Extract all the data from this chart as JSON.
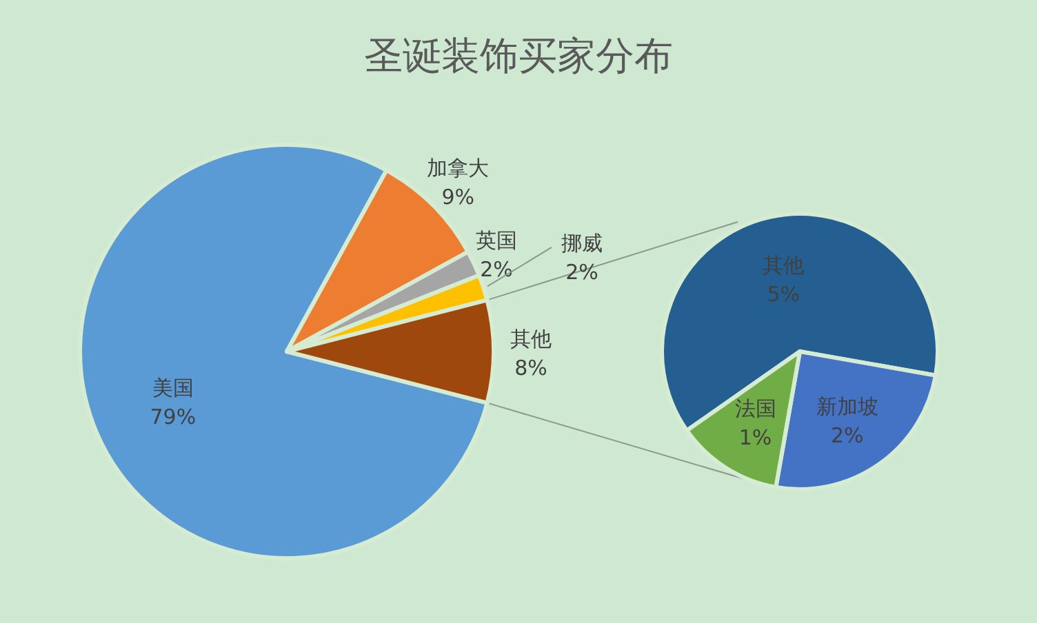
{
  "chart_data": [
    {
      "type": "pie",
      "title": "圣诞装饰买家分布",
      "categories": [
        "美国",
        "加拿大",
        "英国",
        "挪威",
        "其他"
      ],
      "values": [
        79,
        9,
        2,
        2,
        8
      ],
      "value_labels": [
        "79%",
        "9%",
        "2%",
        "2%",
        "8%"
      ],
      "colors": [
        "#5b9bd5",
        "#ed7d31",
        "#a5a5a5",
        "#ffc000",
        "#9e480e"
      ]
    },
    {
      "type": "pie",
      "categories": [
        "其他",
        "新加坡",
        "法国"
      ],
      "values": [
        5,
        2,
        1
      ],
      "value_labels": [
        "5%",
        "2%",
        "1%"
      ],
      "colors": [
        "#255e91",
        "#4472c4",
        "#70ad47"
      ]
    }
  ]
}
